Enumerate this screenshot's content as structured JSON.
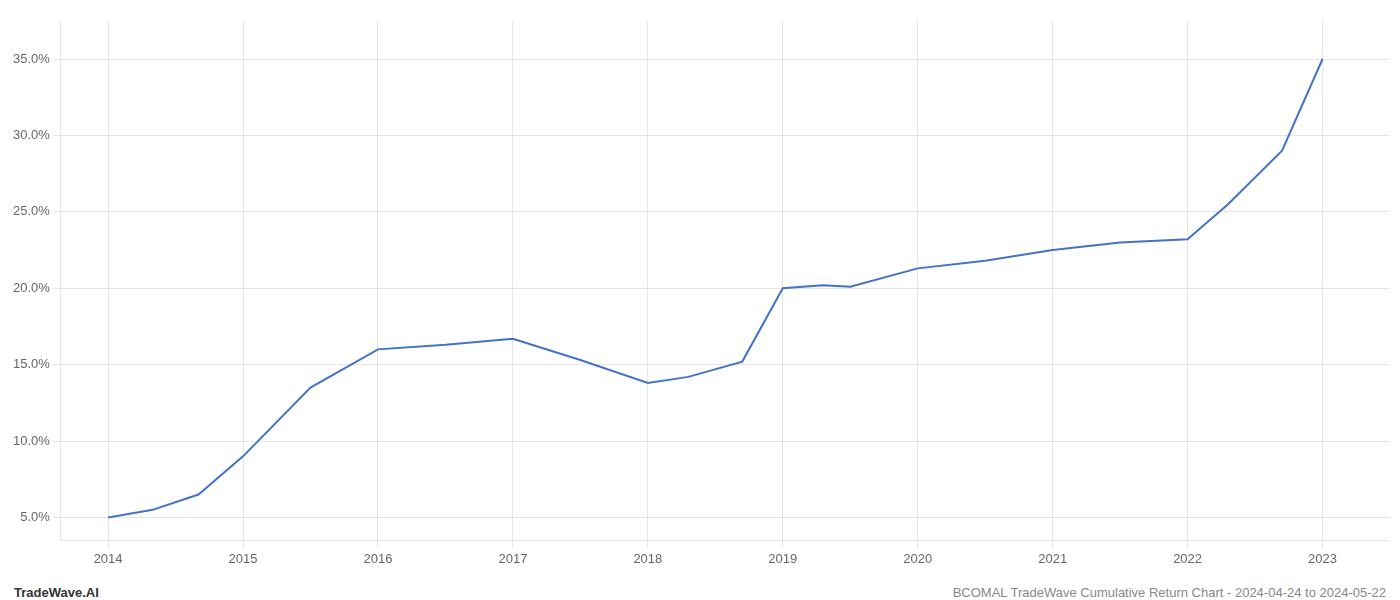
{
  "chart_data": {
    "type": "line",
    "x": [
      2014,
      2014.33,
      2014.67,
      2015,
      2015.5,
      2016,
      2016.5,
      2017,
      2017.5,
      2018,
      2018.3,
      2018.7,
      2019,
      2019.3,
      2019.5,
      2020,
      2020.5,
      2021,
      2021.5,
      2022,
      2022.3,
      2022.7,
      2023
    ],
    "values": [
      5.0,
      5.5,
      6.5,
      9.0,
      13.5,
      16.0,
      16.3,
      16.7,
      15.3,
      13.8,
      14.2,
      15.2,
      20.0,
      20.2,
      20.1,
      21.3,
      21.8,
      22.5,
      23.0,
      23.2,
      25.5,
      29.0,
      35.0
    ],
    "color": "#4472C4",
    "xlim": [
      2013.65,
      2023.5
    ],
    "xticks": [
      2014,
      2015,
      2016,
      2017,
      2018,
      2019,
      2020,
      2021,
      2022,
      2023
    ],
    "ylim": [
      3.5,
      37.5
    ],
    "yticks": [
      {
        "value": 5.0,
        "label": "5.0%"
      },
      {
        "value": 10.0,
        "label": "10.0%"
      },
      {
        "value": 15.0,
        "label": "15.0%"
      },
      {
        "value": 20.0,
        "label": "20.0%"
      },
      {
        "value": 25.0,
        "label": "25.0%"
      },
      {
        "value": 30.0,
        "label": "30.0%"
      },
      {
        "value": 35.0,
        "label": "35.0%"
      }
    ],
    "grid": true,
    "annotations": [
      "TradeWave.AI",
      "BCOMAL TradeWave Cumulative Return Chart - 2024-04-24 to 2024-05-22"
    ]
  }
}
